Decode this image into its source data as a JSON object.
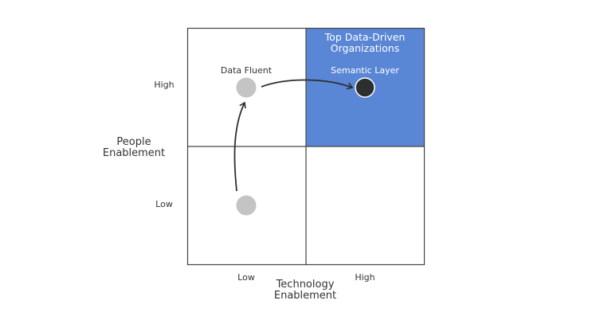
{
  "quadrant_title": [
    "Top Data-Driven",
    "Organizations"
  ],
  "nodes": {
    "data_fluent": "Data Fluent",
    "semantic_layer": "Semantic Layer"
  },
  "y_axis": {
    "label": [
      "People",
      "Enablement"
    ],
    "high": "High",
    "low": "Low"
  },
  "x_axis": {
    "label": [
      "Technology",
      "Enablement"
    ],
    "low": "Low",
    "high": "High"
  },
  "colors": {
    "highlight": "#5a86d6",
    "node_gray": "#c4c4c4",
    "node_dark": "#2b2f2e",
    "grid": "#444444"
  }
}
